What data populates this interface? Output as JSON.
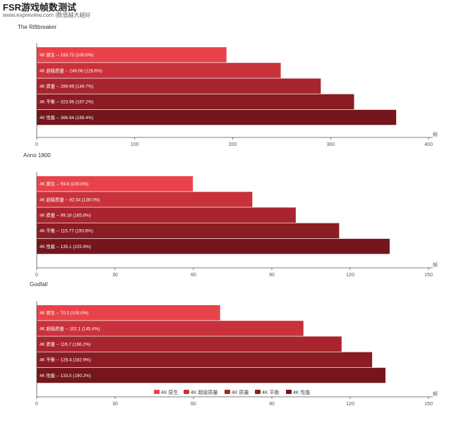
{
  "header": {
    "title": "FSR游戏帧数测试",
    "subtitle": "www.expreview.com |数值越大越好"
  },
  "chart_data": [
    {
      "type": "bar",
      "orientation": "horizontal",
      "title": "The Riftbreaker",
      "categories": [
        "4K 原生",
        "4K 超级质量",
        "4K 质量",
        "4K 平衡",
        "4K 性能"
      ],
      "values": [
        193.72,
        249.08,
        289.96,
        323.96,
        366.94
      ],
      "percent_labels": [
        "100.0%",
        "128.6%",
        "149.7%",
        "167.2%",
        "189.4%"
      ],
      "xlim": [
        0,
        400
      ],
      "xticks": [
        0,
        100,
        200,
        300,
        400
      ],
      "unit": "帧",
      "grid": false
    },
    {
      "type": "bar",
      "orientation": "horizontal",
      "title": "Anno 1800",
      "categories": [
        "4K 原生",
        "4K 超级质量",
        "4K 质量",
        "4K 平衡",
        "4K 性能"
      ],
      "values": [
        59.8,
        82.54,
        99.16,
        115.77,
        135.1
      ],
      "percent_labels": [
        "100.0%",
        "138.0%",
        "165.8%",
        "193.6%",
        "225.9%"
      ],
      "xlim": [
        0,
        150
      ],
      "xticks": [
        0,
        30,
        60,
        90,
        120,
        150
      ],
      "unit": "帧",
      "grid": false
    },
    {
      "type": "bar",
      "orientation": "horizontal",
      "title": "Godfall",
      "categories": [
        "4K 原生",
        "4K 超级质量",
        "4K 质量",
        "4K 平衡",
        "4K 性能"
      ],
      "values": [
        70.2,
        102.1,
        116.7,
        128.4,
        133.5
      ],
      "percent_labels": [
        "100.0%",
        "145.4%",
        "166.2%",
        "182.9%",
        "190.2%"
      ],
      "xlim": [
        0,
        150
      ],
      "xticks": [
        0,
        30,
        60,
        90,
        120,
        150
      ],
      "unit": "帧",
      "grid": false
    }
  ],
  "legend": {
    "position": "bottom",
    "items": [
      "4K 原生",
      "4K 超级质量",
      "4K 质量",
      "4K 平衡",
      "4K 性能"
    ]
  },
  "colors": {
    "series": [
      "#e8434a",
      "#c9323b",
      "#a8242e",
      "#8b1c24",
      "#74161c"
    ]
  }
}
